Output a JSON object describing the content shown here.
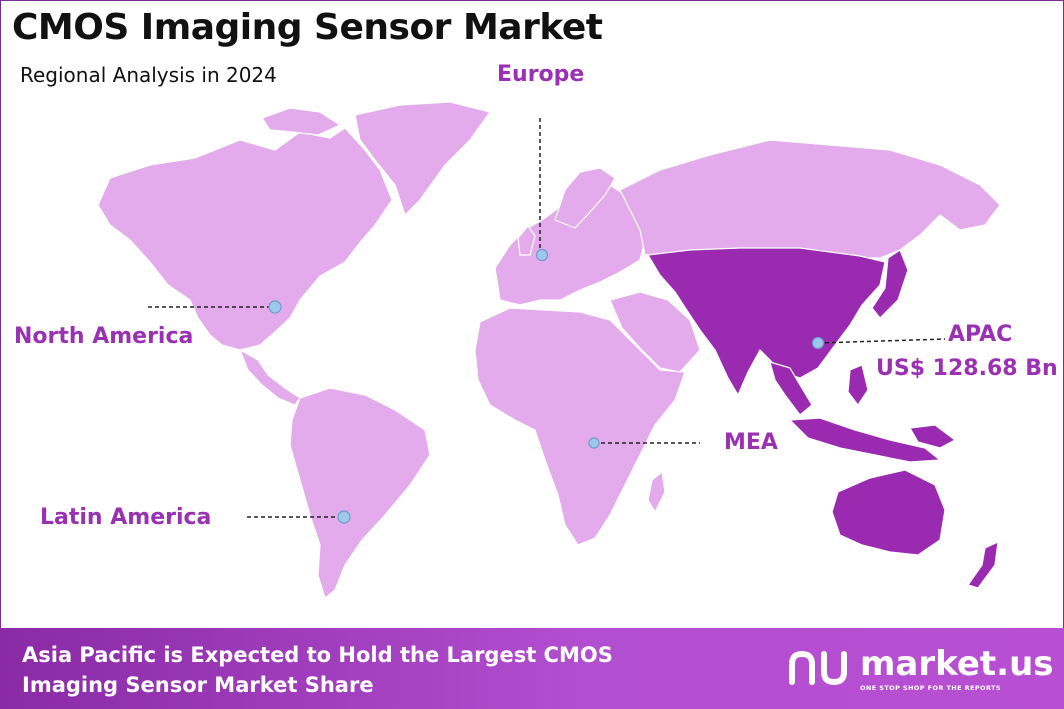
{
  "header": {
    "title": "CMOS Imaging Sensor Market",
    "subtitle": "Regional Analysis in 2024"
  },
  "regions": [
    {
      "id": "north-america",
      "label": "North America",
      "highlighted": false
    },
    {
      "id": "europe",
      "label": "Europe",
      "highlighted": false
    },
    {
      "id": "apac",
      "label": "APAC",
      "value": "US$ 128.68 Bn",
      "highlighted": true
    },
    {
      "id": "mea",
      "label": "MEA",
      "highlighted": false
    },
    {
      "id": "latin-america",
      "label": "Latin America",
      "highlighted": false
    }
  ],
  "footer": {
    "line1": "Asia Pacific is Expected to Hold the Largest CMOS",
    "line2": "Imaging Sensor Market Share"
  },
  "logo": {
    "name": "market.us",
    "tagline": "ONE STOP SHOP FOR THE REPORTS"
  },
  "colors": {
    "base_land": "#e3abeb",
    "highlight_land": "#9a2bb0",
    "label": "#9a31b3",
    "marker": "#9ec7ec",
    "footer": "#a23dc0"
  }
}
